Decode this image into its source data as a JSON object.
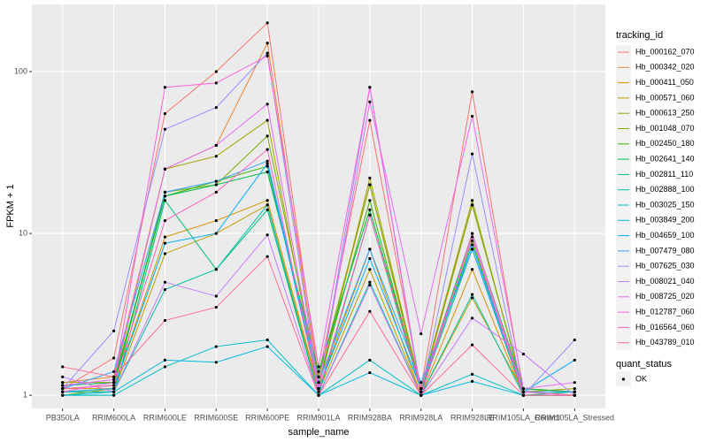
{
  "chart_data": {
    "type": "line",
    "log_scale": true,
    "grid": true,
    "x_label": "sample_name",
    "y_label": "FPKM + 1",
    "legend_title": "tracking_id",
    "legend_position": "right",
    "legend2_title": "quant_status",
    "legend2_labels": [
      "OK"
    ],
    "point_color": "#000000",
    "categories": [
      "PB350LA",
      "RRIM600LA",
      "RRIM600LE",
      "RRIM600SE",
      "RRIM600PE",
      "RRIM901LA",
      "RRIM928BA",
      "RRIM928LA",
      "RRIM928LE",
      "RRIM105LA_Control",
      "RRIM105LA_Stressed"
    ],
    "ylim": [
      0.83,
      260
    ],
    "yticks": [
      1,
      10,
      100
    ],
    "series": [
      {
        "name": "Hb_000162_070",
        "color": "#F8766D",
        "values": [
          1.1,
          1.7,
          55,
          100,
          200,
          1.3,
          50,
          1.1,
          75,
          1.05,
          1.0
        ]
      },
      {
        "name": "Hb_000342_020",
        "color": "#EA8331",
        "values": [
          1.2,
          1.3,
          25,
          35,
          150,
          1.2,
          20,
          1.05,
          15,
          1.1,
          1.05
        ]
      },
      {
        "name": "Hb_000411_050",
        "color": "#D89000",
        "values": [
          1.1,
          1.1,
          9.5,
          12,
          16,
          1.1,
          8,
          1.0,
          6,
          1.0,
          1.0
        ]
      },
      {
        "name": "Hb_000571_060",
        "color": "#C09B00",
        "values": [
          1.05,
          1.05,
          7.5,
          10,
          15,
          1.05,
          6,
          1.0,
          4,
          1.05,
          1.0
        ]
      },
      {
        "name": "Hb_000613_250",
        "color": "#A3A500",
        "values": [
          1.2,
          1.2,
          25,
          30,
          50,
          1.1,
          22,
          1.1,
          16,
          1.05,
          1.1
        ]
      },
      {
        "name": "Hb_001048_070",
        "color": "#7CAE00",
        "values": [
          1.0,
          1.1,
          18,
          20,
          40,
          1.3,
          20,
          1.1,
          15,
          1.1,
          1.05
        ]
      },
      {
        "name": "Hb_002450_180",
        "color": "#39B600",
        "values": [
          1.1,
          1.15,
          17,
          21,
          26,
          1.2,
          16,
          1.05,
          9,
          1.0,
          1.0
        ]
      },
      {
        "name": "Hb_002641_140",
        "color": "#00BB4E",
        "values": [
          1.15,
          1.2,
          17,
          20,
          24,
          1.4,
          14,
          1.1,
          10,
          1.1,
          1.05
        ]
      },
      {
        "name": "Hb_002811_110",
        "color": "#00BF7D",
        "values": [
          1.0,
          1.0,
          16,
          6,
          14,
          1.0,
          13,
          1.05,
          8,
          1.0,
          1.05
        ]
      },
      {
        "name": "Hb_002888_100",
        "color": "#00C1A3",
        "values": [
          1.05,
          1.05,
          4.5,
          6,
          15,
          1.0,
          5,
          1.0,
          4.2,
          1.0,
          1.0
        ]
      },
      {
        "name": "Hb_003025_150",
        "color": "#00BFC4",
        "values": [
          1.0,
          1.0,
          1.5,
          2.0,
          2.2,
          1.0,
          1.65,
          1.0,
          1.35,
          1.0,
          1.0
        ]
      },
      {
        "name": "Hb_003849_200",
        "color": "#00BAE0",
        "values": [
          1.0,
          1.05,
          1.65,
          1.6,
          2.0,
          1.0,
          1.38,
          1.0,
          1.22,
          1.0,
          1.0
        ]
      },
      {
        "name": "Hb_004659_100",
        "color": "#00B0F6",
        "values": [
          1.05,
          1.1,
          8.7,
          10,
          27,
          1.1,
          7,
          1.1,
          8.5,
          1.05,
          1.65
        ]
      },
      {
        "name": "Hb_007479_080",
        "color": "#35A2FF",
        "values": [
          1.1,
          1.4,
          18,
          21,
          28,
          1.2,
          8,
          1.2,
          8,
          1.05,
          1.05
        ]
      },
      {
        "name": "Hb_007625_030",
        "color": "#9590FF",
        "values": [
          1.1,
          2.5,
          44,
          60,
          130,
          1.1,
          80,
          1.05,
          31,
          1.0,
          2.2
        ]
      },
      {
        "name": "Hb_008021_040",
        "color": "#C77CFF",
        "values": [
          1.3,
          1.05,
          5,
          4.1,
          9.8,
          1.0,
          4.8,
          1.0,
          3.0,
          1.8,
          1.0
        ]
      },
      {
        "name": "Hb_008725_020",
        "color": "#E76BF3",
        "values": [
          1.15,
          1.25,
          25,
          35,
          63,
          1.1,
          65,
          2.4,
          53,
          1.1,
          1.2
        ]
      },
      {
        "name": "Hb_012787_060",
        "color": "#FA62DB",
        "values": [
          1.05,
          1.2,
          80,
          85,
          125,
          1.5,
          80,
          1.0,
          10,
          1.05,
          1.0
        ]
      },
      {
        "name": "Hb_016564_060",
        "color": "#FF62BC",
        "values": [
          1.1,
          1.15,
          12,
          18,
          33,
          1.05,
          13,
          1.1,
          9.5,
          1.0,
          1.0
        ]
      },
      {
        "name": "Hb_043789_010",
        "color": "#FF6C91",
        "values": [
          1.5,
          1.3,
          2.9,
          3.5,
          7.2,
          1.0,
          3.3,
          1.0,
          2.05,
          1.0,
          1.0
        ]
      }
    ]
  }
}
